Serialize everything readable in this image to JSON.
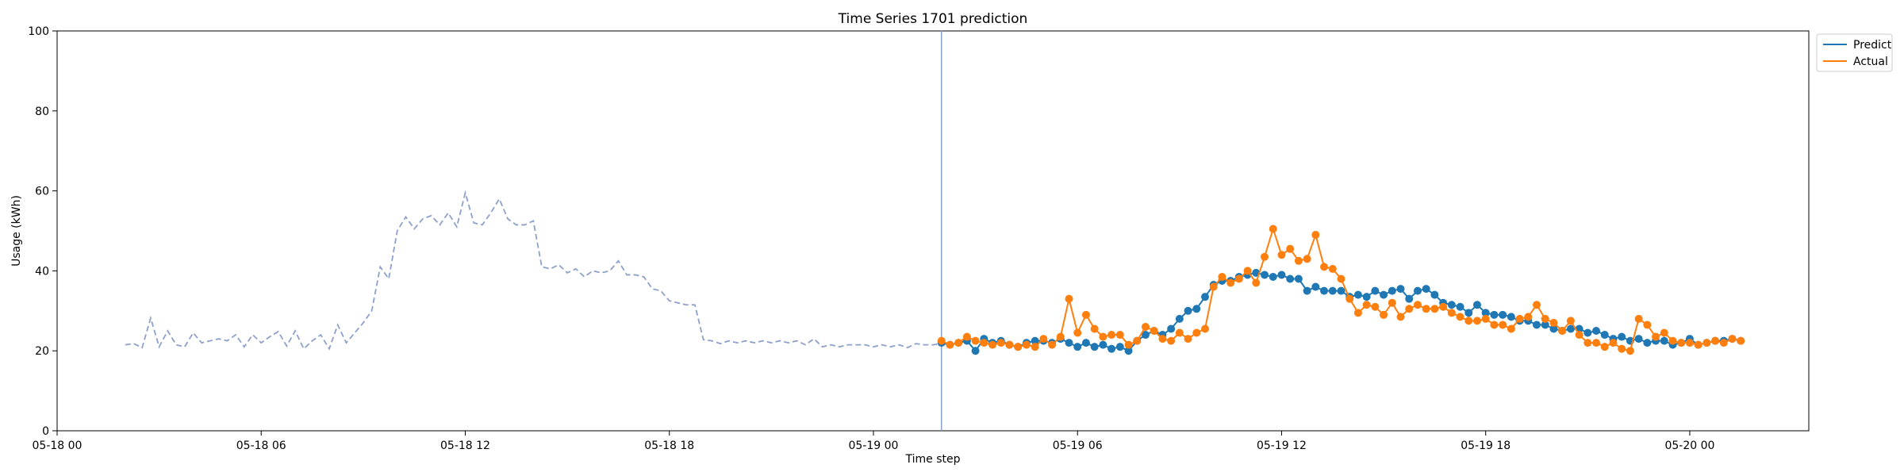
{
  "chart_data": {
    "type": "line",
    "title": "Time Series 1701 prediction",
    "xlabel": "Time step",
    "ylabel": "Usage (kWh)",
    "ylim": [
      0,
      100
    ],
    "xlim": [
      "05-18 00:00",
      "05-20 03:30"
    ],
    "x_ticks": [
      "05-18 00",
      "05-18 06",
      "05-18 12",
      "05-18 18",
      "05-19 00",
      "05-19 06",
      "05-19 12",
      "05-19 18",
      "05-20 00"
    ],
    "y_ticks": [
      "0",
      "20",
      "40",
      "60",
      "80",
      "100"
    ],
    "grid": false,
    "legend_placement": "upper-right-outside",
    "forecast_start": "05-19 02:00",
    "colors": {
      "predict": "#1f77b4",
      "actual": "#ff7f0e",
      "history": "#8da0cb",
      "divider": "#8da0cb"
    },
    "history": {
      "start": "05-18 02:00",
      "step_minutes": 15,
      "values": [
        21.5,
        21.8,
        20.8,
        28.2,
        21.0,
        25.0,
        21.5,
        21.0,
        24.5,
        22.0,
        22.5,
        23.0,
        22.5,
        24.0,
        21.0,
        24.0,
        22.0,
        23.5,
        24.8,
        21.2,
        25.0,
        20.5,
        22.5,
        24.0,
        20.5,
        26.5,
        22.0,
        24.5,
        27.0,
        30.0,
        41.0,
        38.0,
        50.0,
        53.5,
        50.5,
        53.0,
        53.8,
        51.5,
        54.5,
        51.0,
        59.5,
        52.0,
        51.5,
        54.5,
        58.0,
        53.0,
        51.5,
        51.5,
        52.5,
        41.0,
        40.5,
        41.5,
        39.5,
        40.5,
        38.5,
        40.0,
        39.5,
        40.0,
        42.5,
        39.0,
        39.0,
        38.5,
        35.5,
        35.0,
        32.5,
        32.0,
        31.5,
        31.5,
        22.8,
        22.5,
        21.8,
        22.5,
        22.0,
        22.5,
        22.0,
        22.5,
        22.0,
        22.5,
        22.0,
        22.5,
        21.5,
        23.0,
        21.0,
        21.5,
        21.0,
        21.5,
        21.5,
        21.5,
        21.0,
        21.5,
        21.0,
        21.5,
        20.8,
        21.8,
        21.5,
        21.5,
        21.8
      ]
    },
    "series": [
      {
        "name": "Predict",
        "start": "05-19 02:00",
        "step_minutes": 15,
        "values": [
          22.0,
          21.5,
          22.0,
          22.5,
          20.0,
          23.0,
          22.0,
          22.5,
          21.5,
          21.0,
          22.0,
          22.5,
          22.5,
          22.0,
          23.0,
          22.0,
          21.0,
          22.0,
          21.0,
          21.5,
          20.5,
          21.0,
          20.0,
          22.5,
          24.0,
          25.0,
          24.0,
          25.5,
          28.0,
          30.0,
          30.5,
          33.5,
          36.5,
          37.5,
          37.5,
          38.5,
          39.0,
          39.5,
          39.0,
          38.5,
          39.0,
          38.0,
          38.0,
          35.0,
          36.0,
          35.0,
          35.0,
          35.0,
          33.5,
          34.0,
          33.5,
          35.0,
          34.0,
          35.0,
          35.5,
          33.0,
          35.0,
          35.5,
          34.0,
          32.0,
          31.5,
          31.0,
          29.5,
          31.5,
          29.5,
          29.0,
          29.0,
          28.5,
          27.5,
          27.5,
          26.5,
          26.5,
          25.5,
          25.0,
          25.5,
          25.5,
          24.5,
          25.0,
          24.0,
          23.0,
          23.5,
          22.5,
          23.0,
          22.0,
          22.5,
          22.5,
          21.5,
          22.0,
          23.0,
          21.5,
          22.0,
          22.5,
          22.5,
          23.0,
          22.5
        ]
      },
      {
        "name": "Actual",
        "start": "05-19 02:00",
        "step_minutes": 15,
        "values": [
          22.5,
          21.5,
          22.0,
          23.5,
          22.5,
          22.0,
          21.5,
          22.0,
          21.5,
          21.0,
          21.5,
          21.0,
          23.0,
          21.5,
          23.5,
          33.0,
          24.5,
          29.0,
          25.5,
          23.5,
          24.0,
          24.0,
          21.5,
          22.5,
          26.0,
          25.0,
          23.0,
          22.5,
          24.5,
          23.0,
          24.5,
          25.5,
          36.0,
          38.5,
          37.0,
          38.0,
          40.0,
          37.0,
          43.5,
          50.5,
          44.0,
          45.5,
          42.5,
          43.0,
          49.0,
          41.0,
          40.5,
          38.0,
          33.0,
          29.5,
          31.5,
          31.0,
          29.0,
          32.0,
          28.5,
          30.5,
          31.5,
          30.5,
          30.5,
          31.0,
          29.5,
          28.5,
          27.5,
          27.5,
          28.0,
          26.5,
          26.5,
          25.5,
          28.0,
          28.5,
          31.5,
          28.0,
          27.0,
          25.0,
          27.5,
          24.0,
          22.0,
          22.0,
          21.0,
          22.0,
          20.5,
          20.0,
          28.0,
          26.5,
          23.5,
          24.5,
          22.5,
          22.0,
          22.0,
          21.5,
          22.0,
          22.5,
          22.0,
          23.0,
          22.5
        ]
      }
    ]
  }
}
